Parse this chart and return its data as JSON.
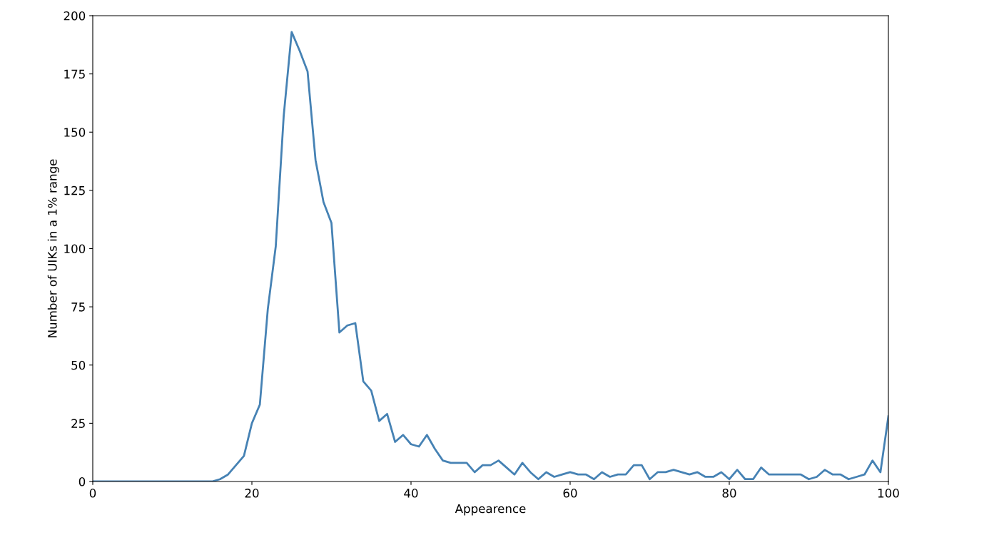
{
  "chart_data": {
    "type": "line",
    "xlabel": "Appearence",
    "ylabel": "Number of UIKs in a 1% range",
    "x": [
      0,
      1,
      2,
      3,
      4,
      5,
      6,
      7,
      8,
      9,
      10,
      11,
      12,
      13,
      14,
      15,
      16,
      17,
      18,
      19,
      20,
      21,
      22,
      23,
      24,
      25,
      26,
      27,
      28,
      29,
      30,
      31,
      32,
      33,
      34,
      35,
      36,
      37,
      38,
      39,
      40,
      41,
      42,
      43,
      44,
      45,
      46,
      47,
      48,
      49,
      50,
      51,
      52,
      53,
      54,
      55,
      56,
      57,
      58,
      59,
      60,
      61,
      62,
      63,
      64,
      65,
      66,
      67,
      68,
      69,
      70,
      71,
      72,
      73,
      74,
      75,
      76,
      77,
      78,
      79,
      80,
      81,
      82,
      83,
      84,
      85,
      86,
      87,
      88,
      89,
      90,
      91,
      92,
      93,
      94,
      95,
      96,
      97,
      98,
      99,
      100
    ],
    "series": [
      {
        "color": "#4682b4",
        "values": [
          0,
          0,
          0,
          0,
          0,
          0,
          0,
          0,
          0,
          0,
          0,
          0,
          0,
          0,
          0,
          0,
          1,
          3,
          7,
          11,
          25,
          33,
          74,
          101,
          157,
          193,
          185,
          176,
          138,
          120,
          111,
          64,
          67,
          68,
          43,
          39,
          26,
          29,
          17,
          20,
          16,
          15,
          20,
          14,
          9,
          8,
          8,
          8,
          4,
          7,
          7,
          9,
          6,
          3,
          8,
          4,
          1,
          4,
          2,
          3,
          4,
          3,
          3,
          1,
          4,
          2,
          3,
          3,
          7,
          7,
          1,
          4,
          4,
          5,
          4,
          3,
          4,
          2,
          2,
          4,
          1,
          5,
          1,
          1,
          6,
          3,
          3,
          3,
          3,
          3,
          1,
          2,
          5,
          3,
          3,
          1,
          2,
          3,
          9,
          4,
          28
        ]
      }
    ],
    "xlim": [
      0,
      100
    ],
    "xticks": [
      0,
      20,
      40,
      60,
      80,
      100
    ],
    "ylim": [
      0,
      200
    ],
    "yticks": [
      0,
      25,
      50,
      75,
      100,
      125,
      150,
      175,
      200
    ],
    "grid": false,
    "legend": false,
    "marker": "none",
    "line_style": "solid"
  }
}
